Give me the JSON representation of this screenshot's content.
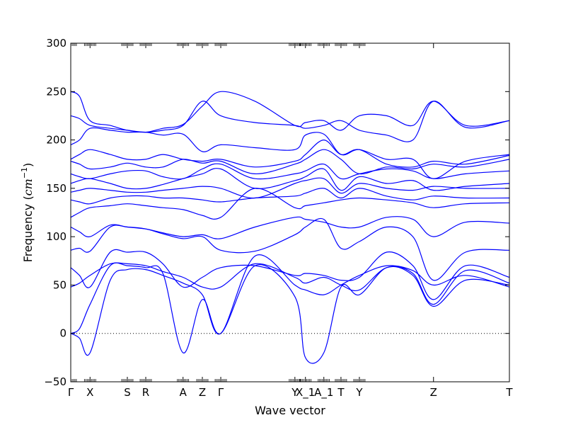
{
  "chart_data": {
    "type": "line",
    "xlabel": "Wave vector",
    "ylabel": "Frequency ($cm^{-1}$)",
    "ylabel_parts": {
      "prefix": "Frequency (",
      "unit_base": "cm",
      "unit_exp": "−1",
      "suffix": ")"
    },
    "ylim": [
      -50,
      300
    ],
    "yticks": [
      -50,
      0,
      50,
      100,
      150,
      200,
      250,
      300
    ],
    "xlim": [
      0,
      1
    ],
    "xticks": [
      {
        "label": "Γ",
        "x": 0.0
      },
      {
        "label": "X",
        "x": 0.044
      },
      {
        "label": "S",
        "x": 0.129
      },
      {
        "label": "R",
        "x": 0.171
      },
      {
        "label": "A",
        "x": 0.256
      },
      {
        "label": "Z",
        "x": 0.3
      },
      {
        "label": "Γ",
        "x": 0.342
      },
      {
        "label": "Y",
        "x": 0.511
      },
      {
        "label": "X_1",
        "x": 0.535
      },
      {
        "label": "A_1",
        "x": 0.577
      },
      {
        "label": "T",
        "x": 0.616
      },
      {
        "label": "Y",
        "x": 0.658
      },
      {
        "label": "Z",
        "x": 0.827
      },
      {
        "label": "T",
        "x": 1.0
      }
    ],
    "zero_line": {
      "y": 0,
      "style": "dotted"
    },
    "grid": false,
    "line_color": "#0000ff",
    "series_style": "all bands drawn in the same blue",
    "series": [
      {
        "x": [
          0,
          0.02,
          0.044,
          0.09,
          0.129,
          0.171,
          0.21,
          0.256,
          0.3,
          0.342,
          0.42,
          0.511,
          0.535,
          0.577,
          0.616,
          0.658,
          0.72,
          0.78,
          0.827,
          0.9,
          1.0
        ],
        "y": [
          0,
          -5,
          -20,
          55,
          66,
          66,
          60,
          52,
          40,
          0,
          80,
          50,
          45,
          40,
          50,
          60,
          70,
          65,
          50,
          60,
          48
        ]
      },
      {
        "x": [
          0,
          0.02,
          0.044,
          0.09,
          0.129,
          0.171,
          0.21,
          0.256,
          0.3,
          0.342,
          0.42,
          0.511,
          0.535,
          0.577,
          0.616,
          0.658,
          0.72,
          0.78,
          0.827,
          0.9,
          1.0
        ],
        "y": [
          0,
          5,
          30,
          70,
          70,
          68,
          62,
          -20,
          35,
          0,
          70,
          38,
          -25,
          -20,
          48,
          40,
          68,
          60,
          28,
          55,
          50
        ]
      },
      {
        "x": [
          0,
          0.02,
          0.044,
          0.09,
          0.129,
          0.171,
          0.21,
          0.256,
          0.3,
          0.342,
          0.42,
          0.511,
          0.535,
          0.577,
          0.616,
          0.658,
          0.72,
          0.78,
          0.827,
          0.9,
          1.0
        ],
        "y": [
          48,
          52,
          60,
          72,
          72,
          70,
          64,
          58,
          48,
          48,
          72,
          58,
          52,
          58,
          50,
          45,
          68,
          62,
          30,
          65,
          52
        ]
      },
      {
        "x": [
          0,
          0.02,
          0.044,
          0.09,
          0.129,
          0.171,
          0.21,
          0.256,
          0.3,
          0.342,
          0.42,
          0.511,
          0.535,
          0.577,
          0.616,
          0.658,
          0.72,
          0.78,
          0.827,
          0.9,
          1.0
        ],
        "y": [
          68,
          60,
          48,
          84,
          84,
          84,
          72,
          48,
          58,
          68,
          70,
          60,
          62,
          60,
          55,
          58,
          84,
          70,
          35,
          70,
          58
        ]
      },
      {
        "x": [
          0,
          0.02,
          0.044,
          0.09,
          0.129,
          0.171,
          0.21,
          0.256,
          0.3,
          0.342,
          0.42,
          0.511,
          0.535,
          0.577,
          0.616,
          0.658,
          0.72,
          0.78,
          0.827,
          0.9,
          1.0
        ],
        "y": [
          86,
          88,
          85,
          110,
          110,
          108,
          103,
          98,
          100,
          86,
          85,
          102,
          110,
          118,
          88,
          95,
          110,
          100,
          55,
          84,
          86
        ]
      },
      {
        "x": [
          0,
          0.02,
          0.044,
          0.09,
          0.129,
          0.171,
          0.21,
          0.256,
          0.3,
          0.342,
          0.42,
          0.511,
          0.535,
          0.577,
          0.616,
          0.658,
          0.72,
          0.78,
          0.827,
          0.9,
          1.0
        ],
        "y": [
          110,
          105,
          100,
          112,
          110,
          108,
          104,
          100,
          102,
          98,
          110,
          120,
          118,
          115,
          110,
          110,
          120,
          118,
          100,
          115,
          114
        ]
      },
      {
        "x": [
          0,
          0.02,
          0.044,
          0.09,
          0.129,
          0.171,
          0.21,
          0.256,
          0.3,
          0.342,
          0.42,
          0.511,
          0.535,
          0.577,
          0.616,
          0.658,
          0.72,
          0.78,
          0.827,
          0.9,
          1.0
        ],
        "y": [
          120,
          125,
          130,
          132,
          134,
          132,
          130,
          128,
          122,
          120,
          150,
          130,
          132,
          135,
          138,
          140,
          138,
          135,
          130,
          134,
          135
        ]
      },
      {
        "x": [
          0,
          0.02,
          0.044,
          0.09,
          0.129,
          0.171,
          0.21,
          0.256,
          0.3,
          0.342,
          0.42,
          0.511,
          0.535,
          0.577,
          0.616,
          0.658,
          0.72,
          0.78,
          0.827,
          0.9,
          1.0
        ],
        "y": [
          138,
          136,
          134,
          140,
          142,
          142,
          140,
          140,
          138,
          136,
          140,
          142,
          145,
          150,
          140,
          150,
          142,
          138,
          142,
          140,
          140
        ]
      },
      {
        "x": [
          0,
          0.02,
          0.044,
          0.09,
          0.129,
          0.171,
          0.21,
          0.256,
          0.3,
          0.342,
          0.42,
          0.511,
          0.535,
          0.577,
          0.616,
          0.658,
          0.72,
          0.78,
          0.827,
          0.9,
          1.0
        ],
        "y": [
          146,
          148,
          150,
          148,
          146,
          146,
          148,
          150,
          152,
          150,
          140,
          155,
          158,
          160,
          145,
          155,
          150,
          148,
          152,
          150,
          150
        ]
      },
      {
        "x": [
          0,
          0.02,
          0.044,
          0.09,
          0.129,
          0.171,
          0.21,
          0.256,
          0.3,
          0.342,
          0.42,
          0.511,
          0.535,
          0.577,
          0.616,
          0.658,
          0.72,
          0.78,
          0.827,
          0.9,
          1.0
        ],
        "y": [
          155,
          158,
          160,
          155,
          150,
          150,
          154,
          160,
          165,
          170,
          150,
          158,
          162,
          170,
          148,
          162,
          155,
          158,
          148,
          152,
          155
        ]
      },
      {
        "x": [
          0,
          0.02,
          0.044,
          0.09,
          0.129,
          0.171,
          0.21,
          0.256,
          0.3,
          0.342,
          0.42,
          0.511,
          0.535,
          0.577,
          0.616,
          0.658,
          0.72,
          0.78,
          0.827,
          0.9,
          1.0
        ],
        "y": [
          165,
          162,
          160,
          165,
          168,
          168,
          162,
          160,
          170,
          175,
          160,
          165,
          168,
          175,
          160,
          165,
          170,
          168,
          160,
          165,
          168
        ]
      },
      {
        "x": [
          0,
          0.02,
          0.044,
          0.09,
          0.129,
          0.171,
          0.21,
          0.256,
          0.3,
          0.342,
          0.42,
          0.511,
          0.535,
          0.577,
          0.616,
          0.658,
          0.72,
          0.78,
          0.827,
          0.9,
          1.0
        ],
        "y": [
          178,
          175,
          170,
          172,
          176,
          172,
          172,
          180,
          176,
          178,
          165,
          175,
          180,
          190,
          180,
          165,
          172,
          170,
          175,
          172,
          180
        ]
      },
      {
        "x": [
          0,
          0.02,
          0.044,
          0.09,
          0.129,
          0.171,
          0.21,
          0.256,
          0.3,
          0.342,
          0.42,
          0.511,
          0.535,
          0.577,
          0.616,
          0.658,
          0.72,
          0.78,
          0.827,
          0.9,
          1.0
        ],
        "y": [
          180,
          185,
          190,
          185,
          180,
          180,
          185,
          180,
          178,
          180,
          172,
          178,
          185,
          200,
          185,
          190,
          175,
          172,
          178,
          175,
          184
        ]
      },
      {
        "x": [
          0,
          0.02,
          0.044,
          0.09,
          0.129,
          0.171,
          0.21,
          0.256,
          0.3,
          0.342,
          0.42,
          0.511,
          0.535,
          0.577,
          0.616,
          0.658,
          0.72,
          0.78,
          0.827,
          0.9,
          1.0
        ],
        "y": [
          195,
          200,
          212,
          210,
          208,
          208,
          205,
          206,
          188,
          195,
          192,
          190,
          205,
          206,
          185,
          190,
          180,
          180,
          160,
          178,
          185
        ]
      },
      {
        "x": [
          0,
          0.02,
          0.044,
          0.09,
          0.129,
          0.171,
          0.21,
          0.256,
          0.3,
          0.342,
          0.42,
          0.511,
          0.535,
          0.577,
          0.616,
          0.658,
          0.72,
          0.78,
          0.827,
          0.9,
          1.0
        ],
        "y": [
          225,
          222,
          215,
          212,
          210,
          208,
          210,
          215,
          240,
          225,
          218,
          215,
          212,
          215,
          220,
          210,
          205,
          200,
          240,
          213,
          220
        ]
      },
      {
        "x": [
          0,
          0.02,
          0.044,
          0.09,
          0.129,
          0.171,
          0.21,
          0.256,
          0.3,
          0.342,
          0.42,
          0.511,
          0.535,
          0.577,
          0.616,
          0.658,
          0.72,
          0.78,
          0.827,
          0.9,
          1.0
        ],
        "y": [
          250,
          245,
          220,
          215,
          210,
          208,
          212,
          216,
          235,
          250,
          240,
          215,
          218,
          220,
          210,
          225,
          225,
          215,
          240,
          215,
          220
        ]
      }
    ]
  }
}
